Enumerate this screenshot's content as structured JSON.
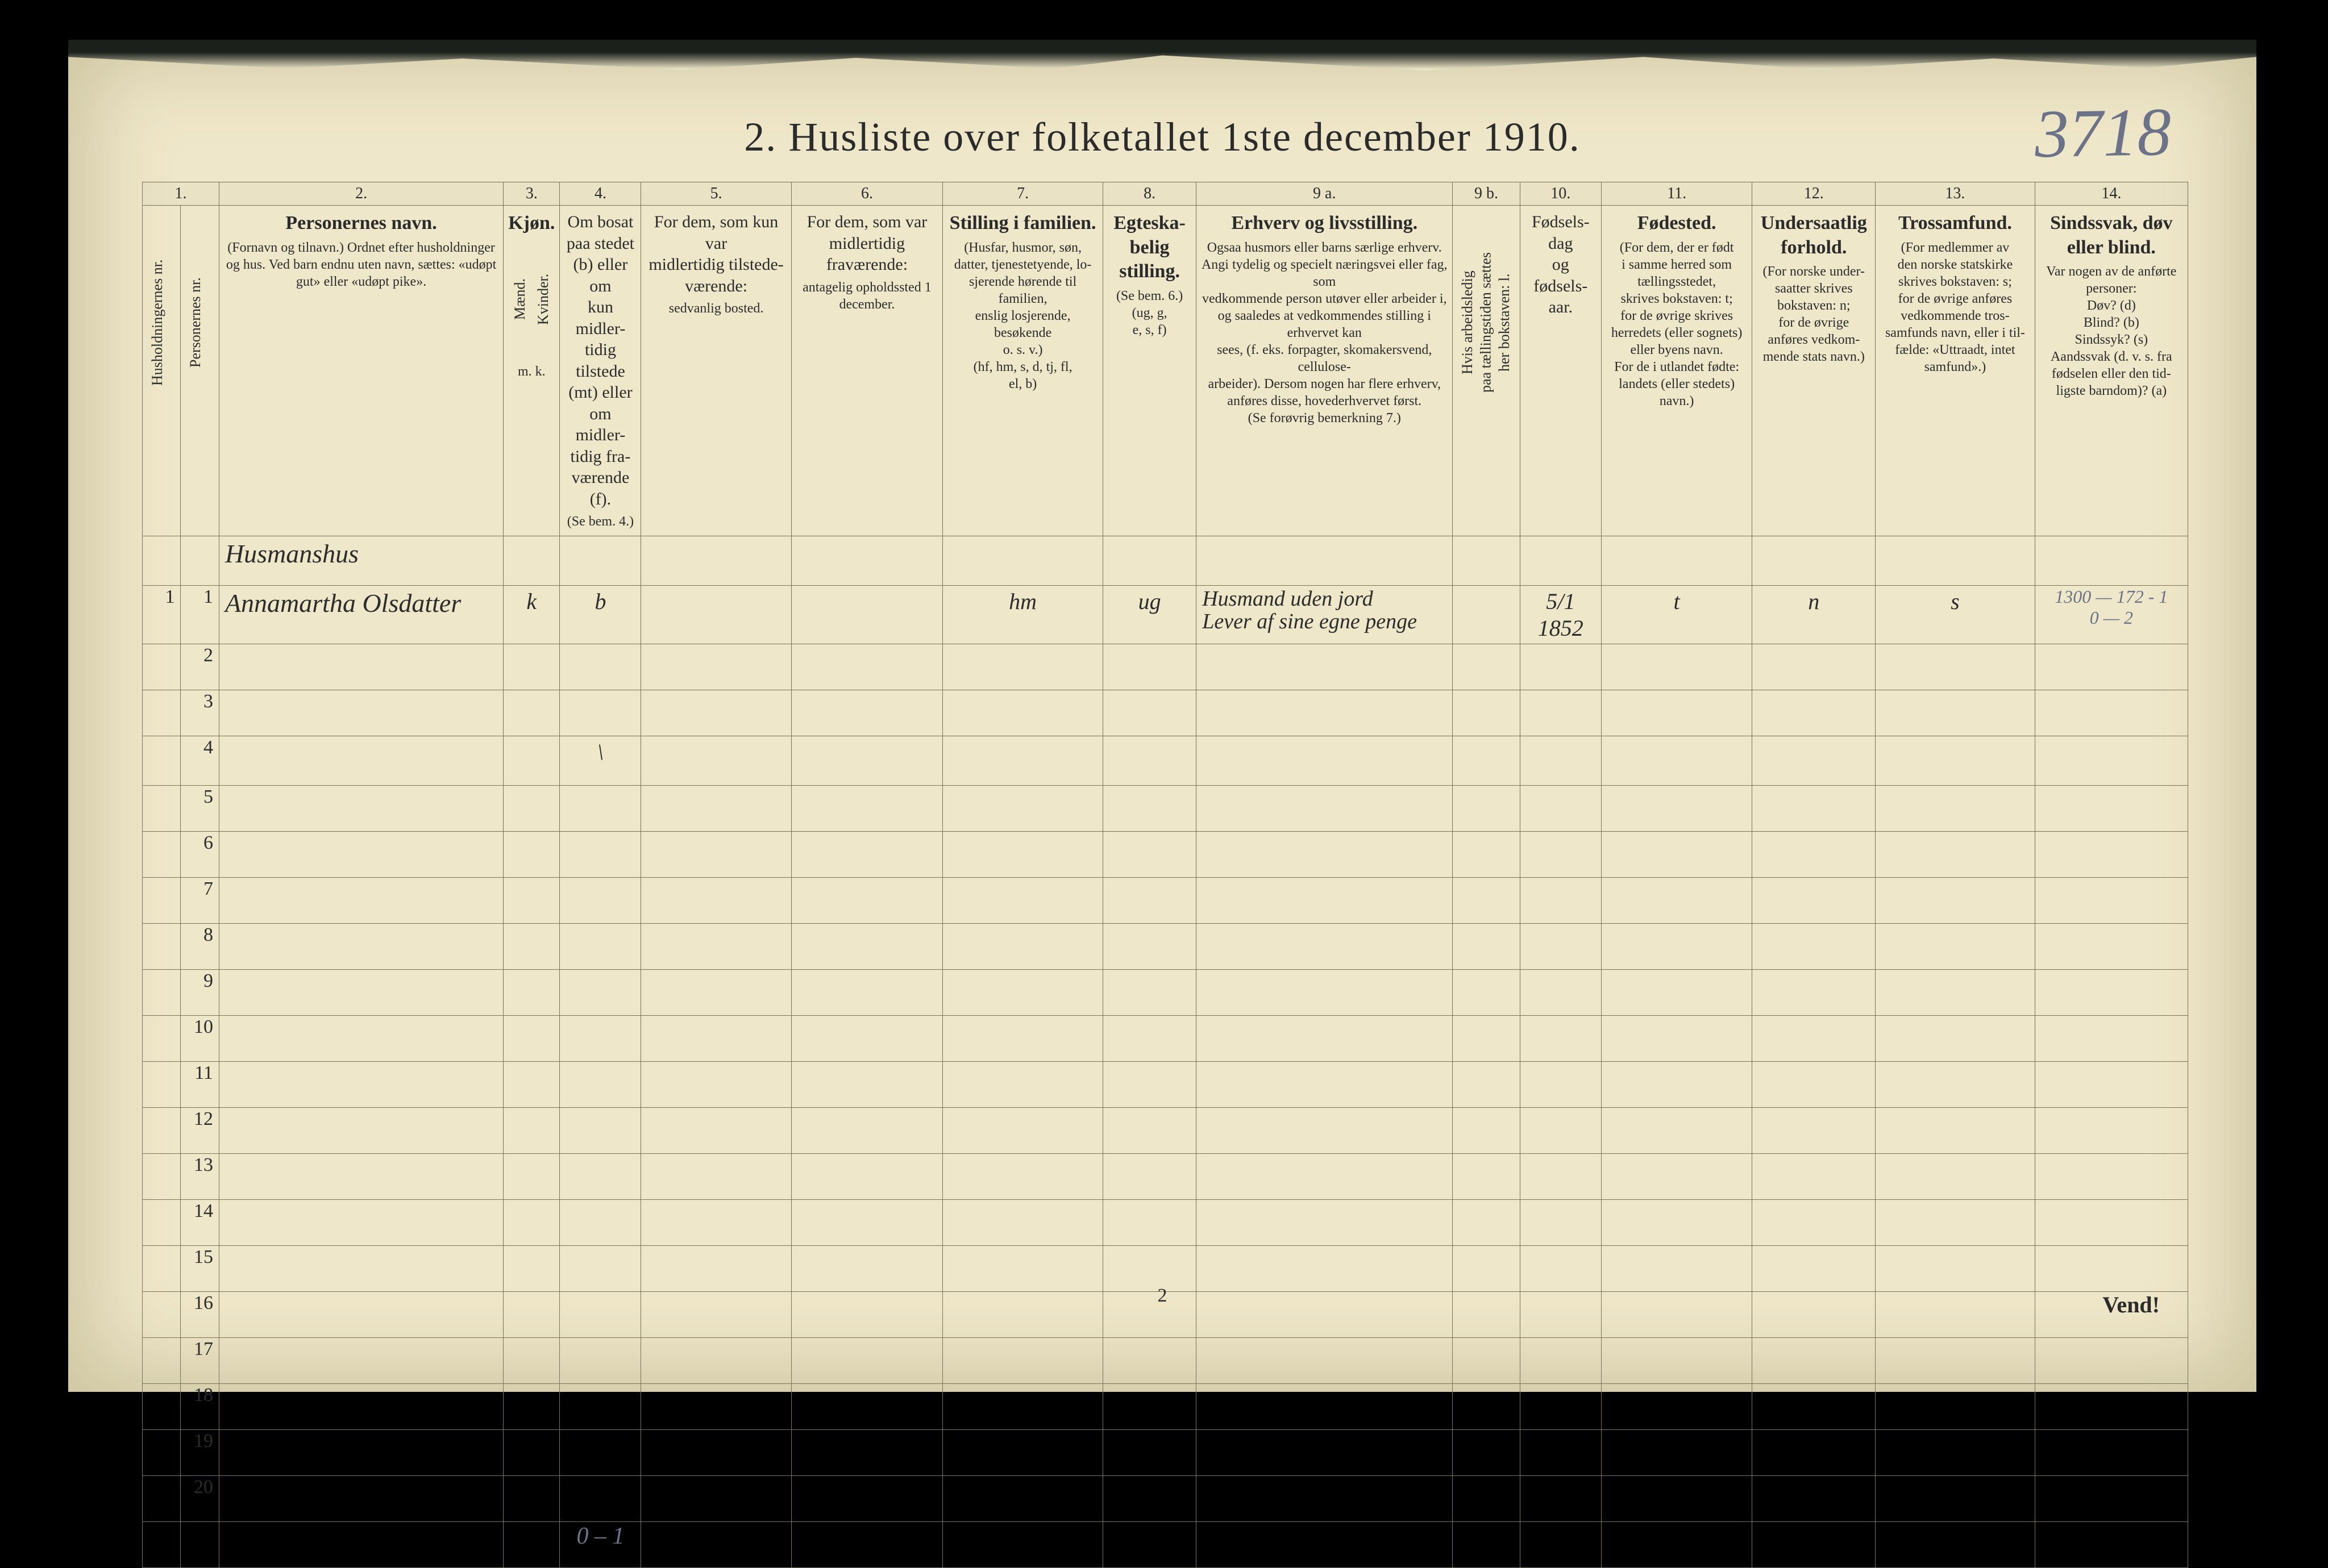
{
  "corner_note": "3718",
  "title": "2.  Husliste over folketallet 1ste december 1910.",
  "col_numbers": [
    "1.",
    "2.",
    "3.",
    "4.",
    "5.",
    "6.",
    "7.",
    "8.",
    "9 a.",
    "9 b.",
    "10.",
    "11.",
    "12.",
    "13.",
    "14."
  ],
  "headers": {
    "c1a": "Husholdningernes nr.",
    "c1b": "Personernes nr.",
    "c2_title": "Personernes navn.",
    "c2_sub": "(Fornavn og tilnavn.)\nOrdnet efter husholdninger og hus.\nVed barn endnu uten navn, sættes: «udøpt gut»\neller «udøpt pike».",
    "c3_title": "Kjøn.",
    "c3_m": "Mænd.",
    "c3_k": "Kvinder.",
    "c3_mk": "m.   k.",
    "c4_title": "Om bosat\npaa stedet\n(b) eller om\nkun midler-\ntidig tilstede\n(mt) eller\nom midler-\ntidig fra-\nværende (f).",
    "c4_sub": "(Se bem. 4.)",
    "c5_title": "For dem, som kun var\nmidlertidig tilstede-\nværende:",
    "c5_sub": "sedvanlig bosted.",
    "c6_title": "For dem, som var\nmidlertidig\nfraværende:",
    "c6_sub": "antagelig opholdssted\n1 december.",
    "c7_title": "Stilling i familien.",
    "c7_sub": "(Husfar, husmor, søn,\ndatter, tjenestetyende, lo-\nsjerende hørende til familien,\nenslig losjerende, besøkende\no. s. v.)\n(hf, hm, s, d, tj, fl,\nel, b)",
    "c8_title": "Egteska-\nbelig\nstilling.",
    "c8_sub": "(Se bem. 6.)\n(ug, g,\ne, s, f)",
    "c9a_title": "Erhverv og livsstilling.",
    "c9a_sub": "Ogsaa husmors eller barns særlige erhverv.\nAngi tydelig og specielt næringsvei eller fag, som\nvedkommende person utøver eller arbeider i,\nog saaledes at vedkommendes stilling i erhvervet kan\nsees, (f. eks. forpagter, skomakersvend, cellulose-\narbeider).  Dersom nogen har flere erhverv,\nanføres disse, hovederhvervet først.\n(Se forøvrig bemerkning 7.)",
    "c9b": "Hvis arbeidsledig\npaa tællingstiden sættes\nher bokstaven: l.",
    "c10_title": "Fødsels-\ndag\nog\nfødsels-\naar.",
    "c11_title": "Fødested.",
    "c11_sub": "(For dem, der er født\ni samme herred som\ntællingsstedet,\nskrives bokstaven: t;\nfor de øvrige skrives\nherredets (eller sognets)\neller byens navn.\nFor de i utlandet fødte:\nlandets (eller stedets)\nnavn.)",
    "c12_title": "Undersaatlig\nforhold.",
    "c12_sub": "(For norske under-\nsaatter skrives\nbokstaven: n;\nfor de øvrige\nanføres vedkom-\nmende stats navn.)",
    "c13_title": "Trossamfund.",
    "c13_sub": "(For medlemmer av\nden norske statskirke\nskrives bokstaven: s;\nfor de øvrige anføres\nvedkommende tros-\nsamfunds navn, eller i til-\nfælde: «Uttraadt, intet\nsamfund».)",
    "c14_title": "Sindssvak, døv\neller blind.",
    "c14_sub": "Var nogen av de anførte\npersoner:\nDøv?        (d)\nBlind?      (b)\nSindssyk? (s)\nAandssvak (d. v. s. fra\nfødselen eller den tid-\nligste barndom)?  (a)"
  },
  "row0": {
    "name": "Husmanshus"
  },
  "row1": {
    "hh": "1",
    "pn": "1",
    "name": "Annamartha Olsdatter",
    "mk": "k",
    "bosat": "b",
    "stilling": "hm",
    "egt": "ug",
    "erhverv": "Husmand uden jord\nLever af sine egne penge",
    "fdato": "5/1 1852",
    "fsted": "t",
    "under": "n",
    "tros": "s",
    "c14": "1300 — 172 - 1\n0 — 2"
  },
  "row4_mark": "\\",
  "bottom_count": "0 – 1",
  "footer_page": "2",
  "vend": "Vend!",
  "blank_rows": [
    2,
    3,
    4,
    5,
    6,
    7,
    8,
    9,
    10,
    11,
    12,
    13,
    14,
    15,
    16,
    17,
    18,
    19,
    20
  ]
}
